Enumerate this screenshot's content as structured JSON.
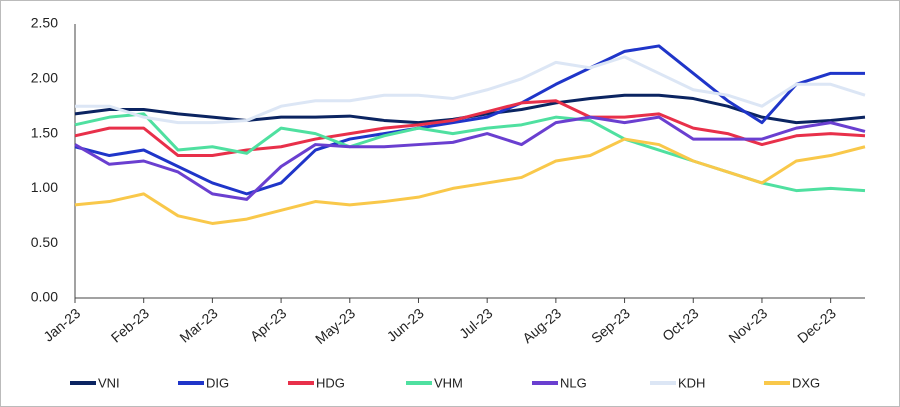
{
  "chart_data": {
    "type": "line",
    "categories": [
      "Jan-23",
      null,
      "Feb-23",
      null,
      "Mar-23",
      null,
      "Apr-23",
      null,
      "May-23",
      null,
      "Jun-23",
      null,
      "Jul-23",
      null,
      "Aug-23",
      null,
      "Sep-23",
      null,
      "Oct-23",
      null,
      "Nov-23",
      null,
      "Dec-23",
      null
    ],
    "ylim": [
      0,
      2.5
    ],
    "yticks": [
      {
        "value": 0,
        "label": "0.00"
      },
      {
        "value": 0.5,
        "label": "0.50"
      },
      {
        "value": 1,
        "label": "1.00"
      },
      {
        "value": 1.5,
        "label": "1.50"
      },
      {
        "value": 2,
        "label": "2.00"
      },
      {
        "value": 2.5,
        "label": "2.50"
      }
    ],
    "series": [
      {
        "name": "VNI",
        "color": "#0b2461",
        "values": [
          1.68,
          1.72,
          1.72,
          1.68,
          1.65,
          1.62,
          1.65,
          1.65,
          1.66,
          1.62,
          1.6,
          1.63,
          1.68,
          1.72,
          1.78,
          1.82,
          1.85,
          1.85,
          1.82,
          1.75,
          1.65,
          1.6,
          1.62,
          1.65
        ]
      },
      {
        "name": "DIG",
        "color": "#1f35c9",
        "values": [
          1.38,
          1.3,
          1.35,
          1.2,
          1.05,
          0.95,
          1.05,
          1.35,
          1.45,
          1.5,
          1.55,
          1.6,
          1.65,
          1.78,
          1.95,
          2.1,
          2.25,
          2.3,
          2.05,
          1.8,
          1.6,
          1.95,
          2.05,
          2.05
        ]
      },
      {
        "name": "HDG",
        "color": "#e8304a",
        "values": [
          1.48,
          1.55,
          1.55,
          1.3,
          1.3,
          1.35,
          1.38,
          1.45,
          1.5,
          1.55,
          1.58,
          1.62,
          1.7,
          1.78,
          1.8,
          1.65,
          1.65,
          1.68,
          1.55,
          1.5,
          1.4,
          1.48,
          1.5,
          1.48
        ]
      },
      {
        "name": "VHM",
        "color": "#4fe0a0",
        "values": [
          1.58,
          1.65,
          1.68,
          1.35,
          1.38,
          1.32,
          1.55,
          1.5,
          1.38,
          1.48,
          1.55,
          1.5,
          1.55,
          1.58,
          1.65,
          1.62,
          1.45,
          1.35,
          1.25,
          1.15,
          1.05,
          0.98,
          1.0,
          0.98
        ]
      },
      {
        "name": "NLG",
        "color": "#6a3fd0",
        "values": [
          1.4,
          1.22,
          1.25,
          1.15,
          0.95,
          0.9,
          1.2,
          1.4,
          1.38,
          1.38,
          1.4,
          1.42,
          1.5,
          1.4,
          1.6,
          1.65,
          1.6,
          1.65,
          1.45,
          1.45,
          1.45,
          1.55,
          1.6,
          1.52
        ]
      },
      {
        "name": "KDH",
        "color": "#dce6f5",
        "values": [
          1.75,
          1.75,
          1.65,
          1.6,
          1.6,
          1.62,
          1.75,
          1.8,
          1.8,
          1.85,
          1.85,
          1.82,
          1.9,
          2.0,
          2.15,
          2.1,
          2.2,
          2.05,
          1.9,
          1.85,
          1.75,
          1.95,
          1.95,
          1.85
        ]
      },
      {
        "name": "DXG",
        "color": "#f9c84a",
        "values": [
          0.85,
          0.88,
          0.95,
          0.75,
          0.68,
          0.72,
          0.8,
          0.88,
          0.85,
          0.88,
          0.92,
          1.0,
          1.05,
          1.1,
          1.25,
          1.3,
          1.45,
          1.4,
          1.25,
          1.15,
          1.05,
          1.25,
          1.3,
          1.38
        ]
      }
    ]
  }
}
